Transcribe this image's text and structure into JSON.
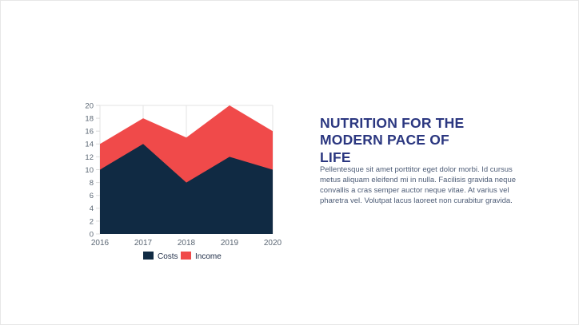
{
  "slide": {
    "title": "NUTRITION FOR THE MODERN PACE OF LIFE",
    "body_lines": [
      "Pellentesque sit amet porttitor eget dolor morbi. Id cursus",
      "metus aliquam eleifend mi in nulla. Facilisis gravida neque",
      "convallis a cras semper auctor neque vitae. At varius vel",
      "pharetra vel. Volutpat lacus laoreet non curabitur gravida."
    ]
  },
  "theme": {
    "title_color": "#2b3780",
    "body_color": "#4e5d77",
    "costs_color": "#102a43",
    "income_color": "#f04a4a",
    "grid_color": "#e3e3e3",
    "tick_label_color": "#5a6673",
    "legend_text_color": "#22304a"
  },
  "chart_data": {
    "type": "area",
    "stacked": true,
    "categories": [
      "2016",
      "2017",
      "2018",
      "2019",
      "2020"
    ],
    "series": [
      {
        "name": "Costs",
        "values": [
          10,
          14,
          8,
          12,
          10
        ],
        "color": "#102a43"
      },
      {
        "name": "Income",
        "values": [
          4,
          4,
          7,
          8,
          6
        ],
        "color": "#f04a4a"
      }
    ],
    "stacked_totals": [
      14,
      18,
      15,
      20,
      16
    ],
    "title": "",
    "xlabel": "",
    "ylabel": "",
    "ylim": [
      0,
      20
    ],
    "ytick_step": 2,
    "grid": {
      "vertical": true,
      "top_border": true,
      "horizontal": false
    },
    "legend": {
      "position": "bottom",
      "labels": [
        "Costs",
        "Income"
      ]
    }
  }
}
